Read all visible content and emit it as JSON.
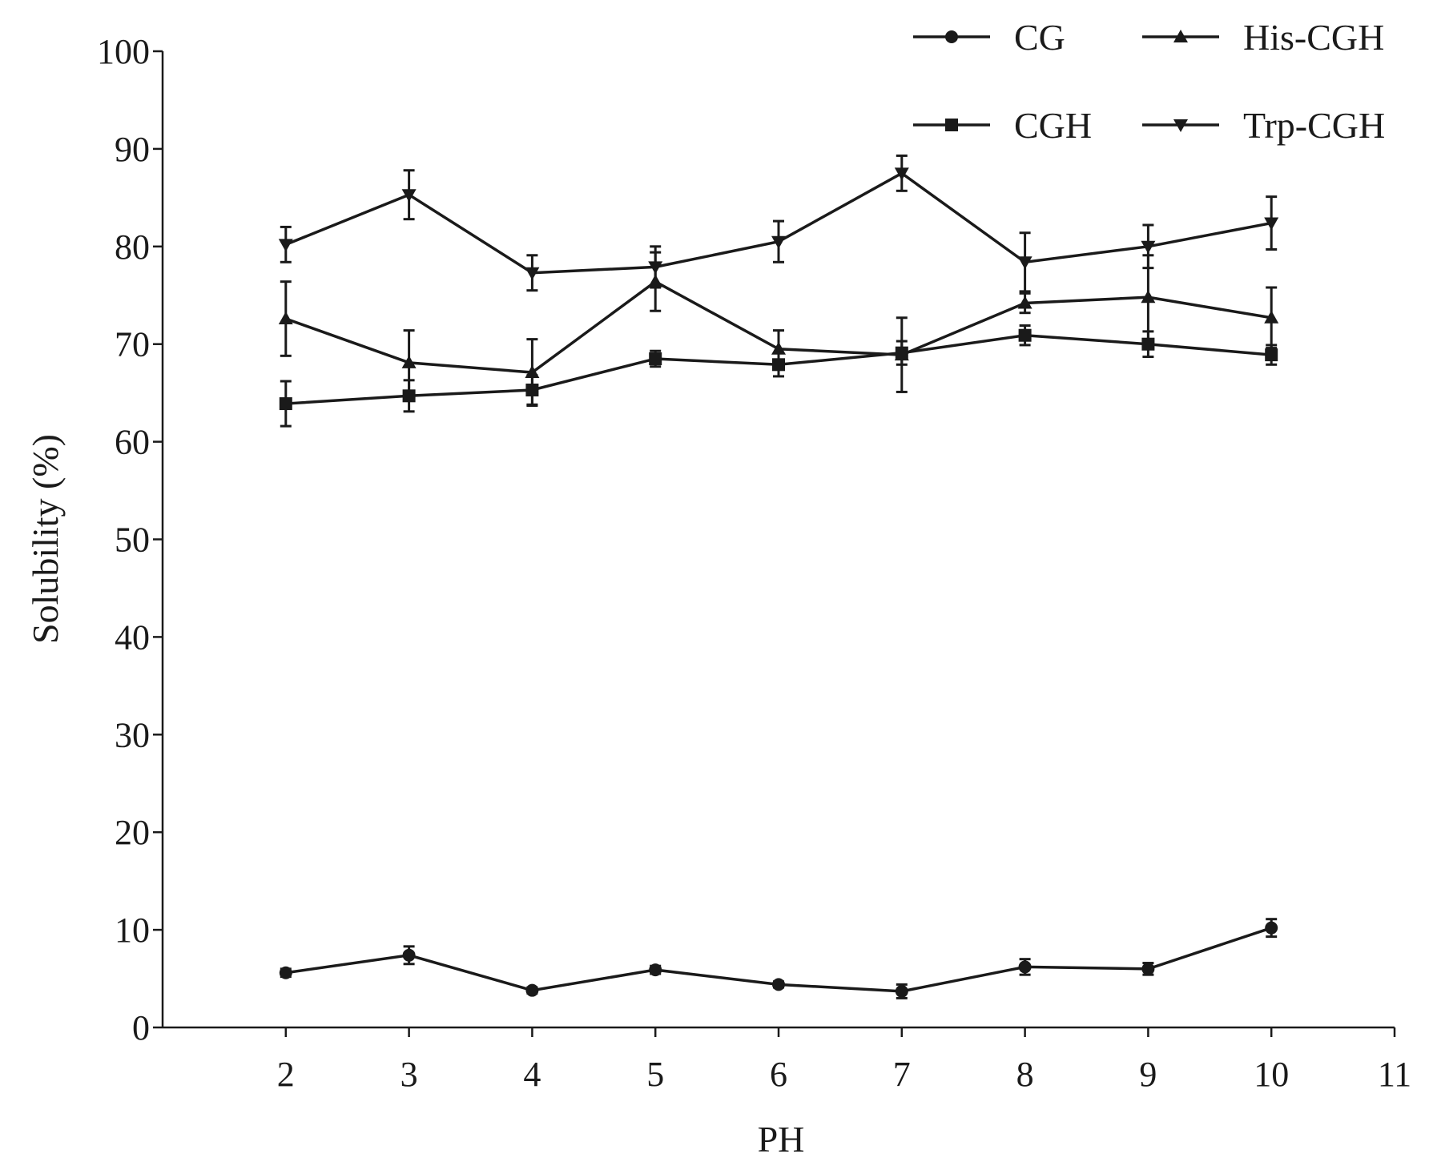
{
  "chart_data": {
    "type": "line",
    "title": "",
    "xlabel": "PH",
    "ylabel": "Solubility (%)",
    "xlim": [
      1,
      11
    ],
    "ylim": [
      0,
      100
    ],
    "xticks": [
      "2",
      "3",
      "4",
      "5",
      "6",
      "7",
      "8",
      "9",
      "10",
      "11"
    ],
    "yticks": [
      "0",
      "10",
      "20",
      "30",
      "40",
      "50",
      "60",
      "70",
      "80",
      "90",
      "100"
    ],
    "x": [
      2,
      3,
      4,
      5,
      6,
      7,
      8,
      9,
      10
    ],
    "legend_position": "top-right",
    "series": [
      {
        "name": "CG",
        "marker": "circle",
        "values": [
          5.6,
          7.4,
          3.8,
          5.9,
          4.4,
          3.7,
          6.2,
          6.0,
          10.2
        ],
        "errors": [
          0.4,
          0.9,
          0.3,
          0.4,
          0.3,
          0.7,
          0.8,
          0.6,
          0.9
        ]
      },
      {
        "name": "CGH",
        "marker": "square",
        "values": [
          63.9,
          64.7,
          65.3,
          68.5,
          67.9,
          69.1,
          70.9,
          70.0,
          68.9
        ],
        "errors": [
          2.3,
          1.6,
          1.5,
          0.8,
          1.2,
          1.2,
          1.0,
          1.3,
          1.0
        ]
      },
      {
        "name": "His-CGH",
        "marker": "triangle-up",
        "values": [
          72.6,
          68.1,
          67.1,
          76.4,
          69.5,
          68.9,
          74.2,
          74.8,
          72.7
        ],
        "errors": [
          3.8,
          3.3,
          3.4,
          3.0,
          1.9,
          3.8,
          1.0,
          4.3,
          3.1
        ]
      },
      {
        "name": "Trp-CGH",
        "marker": "triangle-down",
        "values": [
          80.2,
          85.3,
          77.3,
          77.9,
          80.5,
          87.5,
          78.4,
          80.0,
          82.4
        ],
        "errors": [
          1.8,
          2.5,
          1.8,
          2.1,
          2.1,
          1.8,
          3.0,
          2.2,
          2.7
        ]
      }
    ]
  }
}
